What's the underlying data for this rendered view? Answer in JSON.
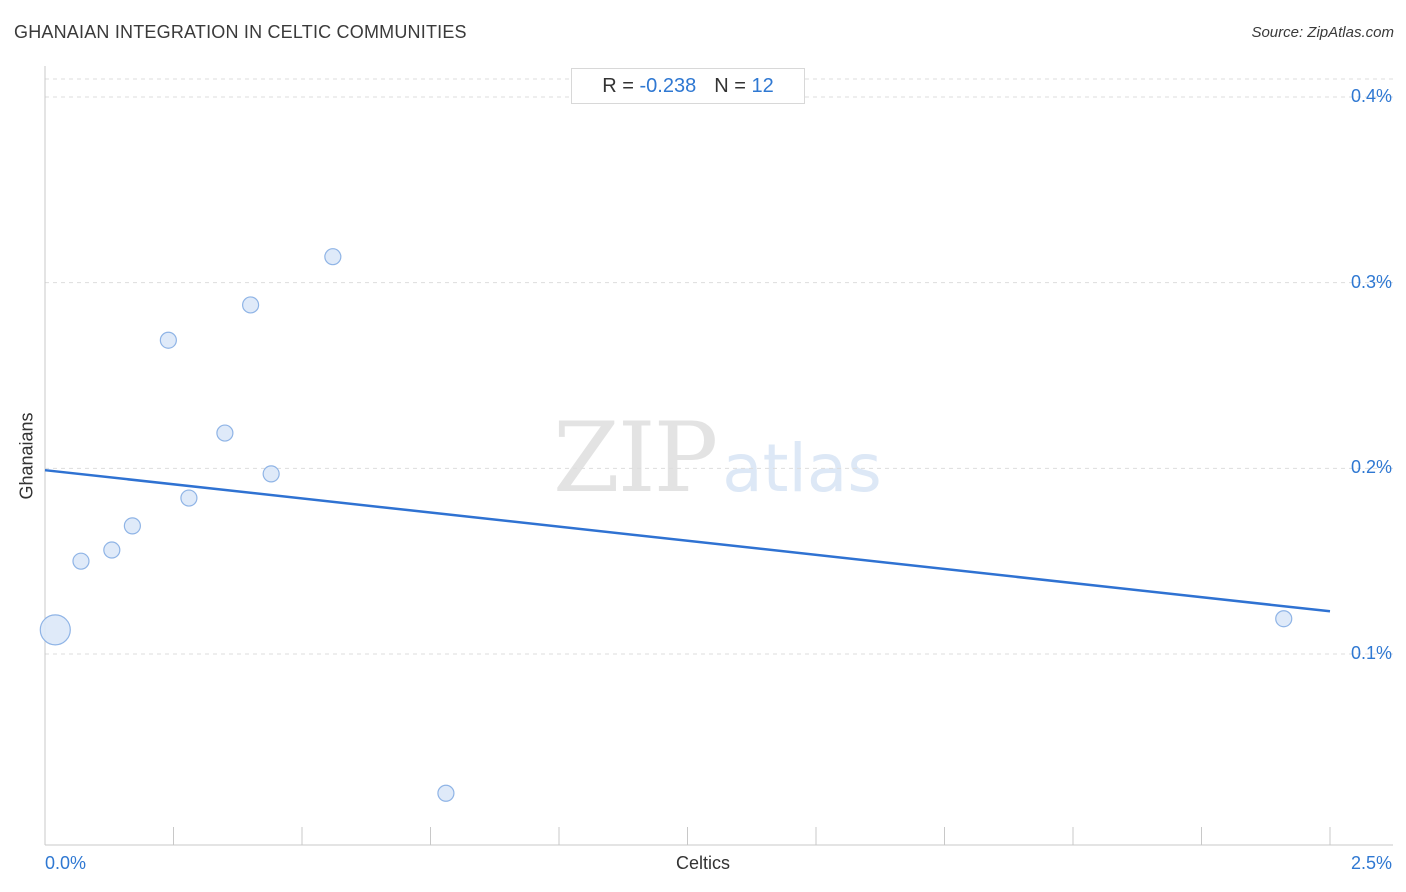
{
  "header": {
    "title": "GHANAIAN INTEGRATION IN CELTIC COMMUNITIES",
    "source": "Source: ZipAtlas.com"
  },
  "stats": {
    "r_label": "R =",
    "r_value": "-0.238",
    "n_label": "N =",
    "n_value": "12"
  },
  "watermark": {
    "zip": "ZIP",
    "atlas": "atlas"
  },
  "colors": {
    "point_fill": "#dbe8f8",
    "point_stroke": "#8fb4e6",
    "trend_line": "#2f72d2",
    "grid": "#dddddd",
    "axis": "#c8c8c8",
    "accent_text": "#2f78d2"
  },
  "chart_data": {
    "type": "scatter",
    "title": "GHANAIAN INTEGRATION IN CELTIC COMMUNITIES",
    "xlabel": "Celtics",
    "ylabel": "Ghanaians",
    "xlim": [
      0,
      2.5
    ],
    "ylim": [
      0.0,
      0.41
    ],
    "x_tick_labels": [
      "0.0%",
      "2.5%"
    ],
    "y_ticks": [
      {
        "value": 0.4,
        "label": "0.4%"
      },
      {
        "value": 0.3,
        "label": "0.3%"
      },
      {
        "value": 0.2,
        "label": "0.2%"
      },
      {
        "value": 0.1,
        "label": "0.1%"
      }
    ],
    "grid": "horizontal dashed",
    "points": [
      {
        "x": 0.02,
        "y": 0.113,
        "size": "large"
      },
      {
        "x": 0.07,
        "y": 0.15,
        "size": "normal"
      },
      {
        "x": 0.13,
        "y": 0.156,
        "size": "normal"
      },
      {
        "x": 0.17,
        "y": 0.169,
        "size": "normal"
      },
      {
        "x": 0.24,
        "y": 0.269,
        "size": "normal"
      },
      {
        "x": 0.28,
        "y": 0.184,
        "size": "normal"
      },
      {
        "x": 0.35,
        "y": 0.219,
        "size": "normal"
      },
      {
        "x": 0.4,
        "y": 0.288,
        "size": "normal"
      },
      {
        "x": 0.44,
        "y": 0.197,
        "size": "normal"
      },
      {
        "x": 0.56,
        "y": 0.314,
        "size": "normal"
      },
      {
        "x": 0.78,
        "y": 0.025,
        "size": "normal"
      },
      {
        "x": 2.41,
        "y": 0.119,
        "size": "normal"
      }
    ],
    "trend_line": {
      "x": [
        0.0,
        2.5
      ],
      "y": [
        0.199,
        0.123
      ]
    }
  }
}
